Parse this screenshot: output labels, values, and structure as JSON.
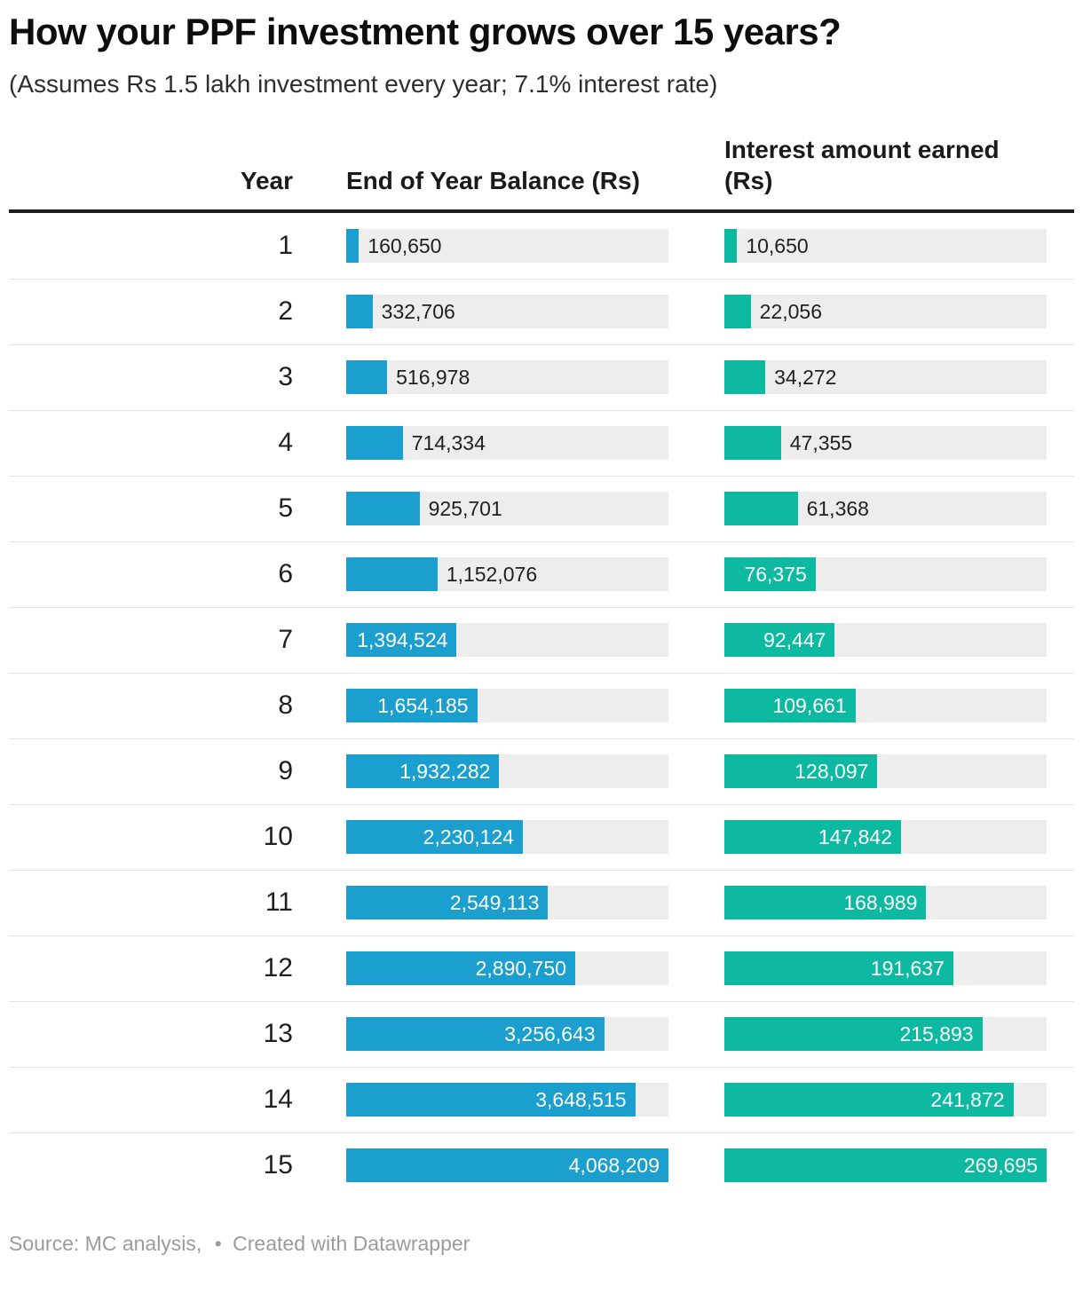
{
  "header": {
    "title": "How your PPF investment grows over 15 years?",
    "subtitle": "(Assumes Rs 1.5 lakh investment every year; 7.1% interest rate)"
  },
  "table": {
    "columns": [
      "Year",
      "End of Year Balance (Rs)",
      "Interest amount earned (Rs)"
    ]
  },
  "chart_data": {
    "type": "bar",
    "title": "How your PPF investment grows over 15 years?",
    "subtitle": "(Assumes Rs 1.5 lakh investment every year; 7.1% interest rate)",
    "category_label": "Year",
    "categories": [
      1,
      2,
      3,
      4,
      5,
      6,
      7,
      8,
      9,
      10,
      11,
      12,
      13,
      14,
      15
    ],
    "series": [
      {
        "name": "End of Year Balance (Rs)",
        "color": "#1a9fce",
        "values": [
          160650,
          332706,
          516978,
          714334,
          925701,
          1152076,
          1394524,
          1654185,
          1932282,
          2230124,
          2549113,
          2890750,
          3256643,
          3648515,
          4068209
        ]
      },
      {
        "name": "Interest amount earned (Rs)",
        "color": "#0db9a0",
        "values": [
          10650,
          22056,
          34272,
          47355,
          61368,
          76375,
          92447,
          109661,
          128097,
          147842,
          168989,
          191637,
          215893,
          241872,
          269695
        ]
      }
    ],
    "layout": {
      "orientation": "horizontal",
      "scale": "each column scaled independently to its max value",
      "value_labels": "on bars (inside when fits, else outside right)",
      "grid": false,
      "legend": false
    }
  },
  "footer": {
    "source": "Source: MC analysis,",
    "bullet": "•",
    "attribution": "Created with Datawrapper"
  },
  "colors": {
    "balance_bar": "#1a9fce",
    "interest_bar": "#0db9a0",
    "bar_track": "#ededed",
    "row_divider": "#e4e4e4",
    "header_rule": "#1c1c1c",
    "label_inside": "#ffffff",
    "label_outside": "#1f1f1f",
    "footer_text": "#9b9b9b"
  }
}
